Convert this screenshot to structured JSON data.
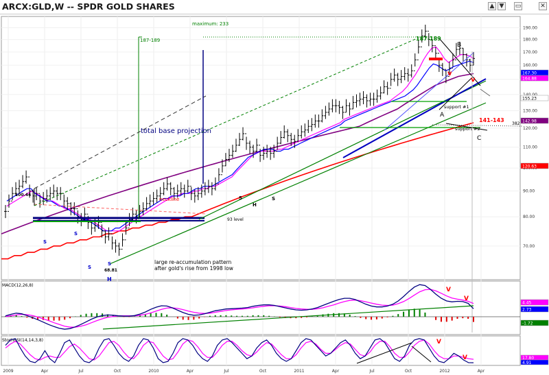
{
  "window": {
    "title": "ARCX:GLD,W -- SPDR GOLD SHARES",
    "buttons": [
      {
        "name": "up-arrow-icon",
        "glyph": "▲"
      },
      {
        "name": "down-arrow-icon",
        "glyph": "▼"
      },
      {
        "name": "restore-icon",
        "glyph": "▭"
      },
      {
        "name": "close-icon",
        "glyph": "✕"
      }
    ]
  },
  "chart_data": [
    {
      "type": "line",
      "panel": "price",
      "scale": "log",
      "ylim": [
        60,
        200
      ],
      "yticks": [
        70,
        80,
        90,
        100,
        110,
        120,
        130,
        140,
        150,
        160,
        170,
        180,
        190
      ],
      "xticks": [
        "2009",
        "Apr",
        "Jul",
        "Oct",
        "2010",
        "Apr",
        "Jul",
        "Oct",
        "2011",
        "Apr",
        "Jul",
        "Oct",
        "2012",
        "Apr"
      ],
      "series": [
        {
          "style": "ohlc",
          "color": "#000000",
          "values": [
            82,
            86,
            89,
            91,
            92,
            94,
            96,
            90,
            88,
            89,
            86,
            87,
            88,
            89,
            90,
            89,
            89,
            86,
            85,
            83,
            83,
            80,
            79,
            81,
            78,
            76,
            77,
            78,
            75,
            73,
            74,
            71,
            70,
            69,
            72,
            76,
            79,
            81,
            80,
            82,
            83,
            85,
            86,
            87,
            88,
            89,
            91,
            93,
            91,
            89,
            90,
            91,
            90,
            92,
            89,
            88,
            89,
            90,
            91,
            92,
            91,
            93,
            97,
            101,
            104,
            106,
            108,
            111,
            114,
            117,
            112,
            110,
            108,
            111,
            106,
            107,
            108,
            107,
            108,
            112,
            115,
            118,
            116,
            114,
            113,
            116,
            118,
            119,
            121,
            122,
            124,
            124,
            127,
            129,
            131,
            133,
            133,
            132,
            129,
            133,
            131,
            135,
            136,
            137,
            138,
            136,
            137,
            137,
            139,
            141,
            145,
            144,
            150,
            153,
            150,
            152,
            154,
            153,
            156,
            164,
            174,
            183,
            187,
            180,
            175,
            169,
            160,
            157,
            152,
            158,
            164,
            172,
            173,
            168,
            164,
            160,
            165
          ]
        },
        {
          "color": "#0000ff",
          "values": [
            86,
            87,
            88,
            89,
            90,
            91,
            91,
            89,
            88,
            87,
            86,
            86,
            85,
            84,
            84,
            83,
            82,
            81,
            80,
            79,
            79,
            78,
            77,
            76,
            75,
            75,
            75,
            76,
            76,
            77,
            78,
            79,
            80,
            81,
            82,
            83,
            84,
            85,
            86,
            87,
            87,
            88,
            88,
            88,
            89,
            89,
            90,
            91,
            91,
            92,
            92,
            92,
            93,
            94,
            95,
            96,
            97,
            99,
            101,
            103,
            105,
            106,
            107,
            108,
            109,
            109,
            109,
            108,
            108,
            109,
            109,
            110,
            111,
            112,
            113,
            114,
            115,
            116,
            117,
            118,
            119,
            120,
            121,
            122,
            124,
            125,
            126,
            127,
            128,
            129,
            130,
            131,
            132,
            133,
            134,
            135,
            136,
            137,
            138,
            139,
            141,
            143,
            146,
            150,
            154,
            158,
            161,
            160,
            158,
            156,
            157,
            159,
            160,
            161,
            162,
            163,
            162
          ]
        },
        {
          "color": "#ff00ff",
          "values": [
            84,
            85,
            86,
            87,
            88,
            89,
            90,
            89,
            88,
            87,
            86,
            86,
            85,
            84,
            83,
            83,
            82,
            81,
            80,
            79,
            79,
            78,
            77,
            76,
            75,
            75,
            75,
            75,
            76,
            77,
            78,
            79,
            80,
            81,
            82,
            83,
            84,
            85,
            86,
            87,
            88,
            88,
            89,
            89,
            89,
            90,
            90,
            91,
            91,
            92,
            92,
            93,
            94,
            95,
            96,
            98,
            100,
            102,
            104,
            106,
            107,
            108,
            108,
            108,
            108,
            109,
            109,
            110,
            111,
            112,
            113,
            114,
            115,
            116,
            117,
            118,
            119,
            120,
            121,
            122,
            123,
            125,
            126,
            127,
            128,
            129,
            130,
            131,
            132,
            133,
            134,
            135,
            136,
            138,
            140,
            142,
            145,
            149,
            153,
            158,
            164,
            169,
            173,
            174,
            170,
            165,
            162,
            164,
            166,
            168,
            168,
            167,
            165
          ]
        },
        {
          "color": "#800080",
          "values": [
            74,
            75,
            76,
            77,
            78,
            79,
            80,
            81,
            82,
            83,
            84,
            85,
            86,
            87,
            88,
            89,
            90,
            91,
            92,
            93,
            94,
            95,
            96,
            97,
            98,
            99,
            100,
            101,
            102,
            103,
            104,
            105,
            106,
            107,
            108,
            109,
            110,
            111,
            112,
            113,
            114,
            115,
            116,
            117,
            118,
            119,
            120,
            121,
            123,
            125,
            127,
            129,
            131,
            134,
            137,
            140,
            143,
            146,
            148,
            150,
            152,
            153,
            154
          ]
        },
        {
          "color": "#ff0000",
          "values": [
            66,
            66,
            67,
            67,
            68,
            68,
            69,
            69,
            70,
            70,
            71,
            71,
            72,
            72,
            73,
            73,
            74,
            74,
            75,
            75,
            76,
            76,
            77,
            77,
            78,
            78,
            79,
            79,
            80,
            80,
            81,
            82,
            83,
            84,
            85,
            86,
            87,
            88,
            89,
            90,
            91,
            92,
            93,
            94,
            95,
            96,
            97,
            98,
            99,
            100,
            101,
            102,
            103,
            104,
            105,
            106,
            107,
            108,
            109,
            110,
            111,
            112,
            113,
            114,
            115,
            116,
            117,
            118,
            119,
            120,
            121,
            122,
            123
          ]
        }
      ],
      "price_labels": [
        {
          "text": "167.30",
          "bg": "#0000ff"
        },
        {
          "text": "164.88",
          "bg": "#ff00ff"
        },
        {
          "text": "155.23",
          "bg": "#ffffff"
        },
        {
          "text": "142.98",
          "bg": "#800080"
        },
        {
          "text": "120.63",
          "bg": "#ff0000"
        }
      ],
      "annotations": [
        {
          "text": "maximum:  233",
          "color": "#008000"
        },
        {
          "text": "187-189",
          "color": "#008000"
        },
        {
          "text": "187-189",
          "color": "#008000"
        },
        {
          "text": "total base projection",
          "color": "#000080"
        },
        {
          "text": "neckline",
          "color": "#ff0000"
        },
        {
          "text": "100.44",
          "color": "#000000"
        },
        {
          "text": "93  level",
          "color": "#000000"
        },
        {
          "text": "68.81",
          "color": "#000000"
        },
        {
          "text": "large re-accumulation pattern",
          "color": "#000000"
        },
        {
          "text": "after gold's rise from 1998 low",
          "color": "#000000"
        },
        {
          "text": "support #1",
          "color": "#000000"
        },
        {
          "text": "support #2",
          "color": "#000000"
        },
        {
          "text": "141-143",
          "color": "#ff0000"
        },
        {
          "text": "382",
          "color": "#000000"
        },
        {
          "text": "B",
          "color": "#000000"
        },
        {
          "text": "A",
          "color": "#000000"
        },
        {
          "text": "C",
          "color": "#000000"
        },
        {
          "text": "v",
          "color": "#ff0000"
        },
        {
          "text": "v",
          "color": "#ff0000"
        }
      ],
      "hs_labels": [
        {
          "text": "S",
          "color": "#0000cc"
        },
        {
          "text": "S",
          "color": "#0000cc"
        },
        {
          "text": "S",
          "color": "#0000cc"
        },
        {
          "text": "S",
          "color": "#0000cc"
        },
        {
          "text": "H",
          "color": "#0000cc"
        },
        {
          "text": "S",
          "color": "#000000"
        },
        {
          "text": "H",
          "color": "#000000"
        },
        {
          "text": "S",
          "color": "#000000"
        }
      ]
    },
    {
      "type": "bar",
      "panel": "MACD",
      "title": "MACD(12,26,8)",
      "series": [
        {
          "color": "#000080",
          "values": [
            0.3,
            0.8,
            1.2,
            1.0,
            0.4,
            -0.3,
            -1.0,
            -1.8,
            -2.6,
            -3.3,
            -3.9,
            -4.2,
            -4.0,
            -3.4,
            -2.6,
            -1.7,
            -0.8,
            -0.1,
            0.4,
            0.6,
            0.5,
            0.3,
            0.2,
            0.2,
            0.4,
            0.9,
            1.6,
            2.5,
            3.2,
            3.7,
            3.6,
            3.0,
            2.2,
            1.4,
            0.8,
            0.5,
            0.6,
            1.0,
            1.5,
            2.0,
            2.3,
            2.6,
            2.7,
            2.8,
            2.9,
            3.1,
            3.5,
            3.8,
            4.0,
            4.0,
            3.8,
            3.4,
            3.0,
            2.6,
            2.3,
            2.2,
            2.3,
            2.6,
            3.1,
            3.8,
            4.5,
            5.2,
            5.8,
            6.2,
            6.2,
            5.8,
            5.0,
            4.2,
            3.6,
            3.3,
            3.3,
            3.6,
            4.2,
            5.3,
            6.8,
            8.5,
            10.0,
            10.8,
            10.5,
            9.2,
            7.6,
            6.2,
            5.3,
            5.0,
            5.2,
            5.1,
            4.5,
            2.7
          ]
        },
        {
          "color": "#ff00ff",
          "values": [
            0.1,
            0.3,
            0.6,
            0.8,
            0.7,
            0.4,
            -0.1,
            -0.7,
            -1.3,
            -2.0,
            -2.6,
            -3.2,
            -3.5,
            -3.5,
            -3.2,
            -2.7,
            -2.0,
            -1.3,
            -0.7,
            -0.2,
            0.1,
            0.3,
            0.3,
            0.3,
            0.3,
            0.5,
            0.8,
            1.3,
            1.9,
            2.5,
            2.9,
            3.0,
            2.8,
            2.4,
            1.9,
            1.5,
            1.2,
            1.1,
            1.2,
            1.5,
            1.8,
            2.1,
            2.3,
            2.5,
            2.6,
            2.8,
            3.0,
            3.3,
            3.5,
            3.7,
            3.7,
            3.6,
            3.4,
            3.1,
            2.8,
            2.6,
            2.5,
            2.5,
            2.7,
            3.0,
            3.5,
            4.0,
            4.6,
            5.1,
            5.5,
            5.6,
            5.4,
            5.0,
            4.6,
            4.2,
            3.9,
            3.8,
            3.9,
            4.4,
            5.1,
            6.1,
            7.3,
            8.4,
            9.1,
            9.2,
            8.7,
            7.9,
            7.0,
            6.3,
            5.9,
            5.6,
            5.2,
            4.45
          ]
        }
      ],
      "price_labels": [
        {
          "text": "4.45",
          "bg": "#ff00ff"
        },
        {
          "text": "2.73",
          "bg": "#0000ff"
        },
        {
          "text": "-1.72",
          "bg": "#008000"
        }
      ],
      "annotations": [
        {
          "text": "V",
          "color": "#ff0000"
        },
        {
          "text": "V",
          "color": "#ff0000"
        }
      ]
    },
    {
      "type": "line",
      "panel": "StochRSI",
      "title": "StochRSI(14,14,3,8)",
      "series": [
        {
          "color": "#000080",
          "values": [
            70,
            90,
            95,
            60,
            30,
            10,
            5,
            20,
            50,
            20,
            5,
            40,
            80,
            90,
            60,
            30,
            10,
            5,
            20,
            60,
            90,
            95,
            70,
            40,
            20,
            10,
            30,
            70,
            95,
            90,
            60,
            20,
            5,
            10,
            40,
            80,
            95,
            90,
            70,
            40,
            20,
            10,
            30,
            70,
            90,
            95,
            80,
            60,
            40,
            20,
            30,
            60,
            80,
            90,
            70,
            40,
            20,
            10,
            20,
            50,
            80,
            95,
            90,
            70,
            50,
            30,
            40,
            60,
            80,
            90,
            70,
            40,
            20,
            30,
            60,
            90,
            95,
            80,
            50,
            20,
            10,
            30,
            70,
            90,
            95,
            90,
            60,
            30,
            10,
            5,
            20,
            40,
            30,
            15,
            5,
            4.91
          ]
        },
        {
          "color": "#ff00ff",
          "values": [
            60,
            75,
            85,
            75,
            55,
            35,
            20,
            15,
            25,
            30,
            25,
            25,
            45,
            65,
            75,
            60,
            40,
            20,
            15,
            30,
            55,
            80,
            85,
            70,
            45,
            25,
            20,
            40,
            70,
            85,
            80,
            55,
            30,
            15,
            20,
            45,
            75,
            90,
            85,
            65,
            40,
            25,
            25,
            45,
            70,
            85,
            85,
            70,
            50,
            35,
            30,
            45,
            65,
            80,
            75,
            55,
            35,
            20,
            20,
            35,
            60,
            80,
            85,
            75,
            55,
            40,
            40,
            55,
            70,
            80,
            75,
            55,
            35,
            30,
            45,
            70,
            85,
            85,
            65,
            40,
            25,
            25,
            45,
            70,
            85,
            90,
            75,
            50,
            30,
            20,
            20,
            30,
            30,
            25,
            20,
            17.8
          ]
        }
      ],
      "price_labels": [
        {
          "text": "17.80",
          "bg": "#ff00ff"
        },
        {
          "text": "4.91",
          "bg": "#0000ff"
        }
      ],
      "annotations": [
        {
          "text": "V",
          "color": "#ff0000"
        },
        {
          "text": "V",
          "color": "#ff0000"
        }
      ]
    }
  ]
}
